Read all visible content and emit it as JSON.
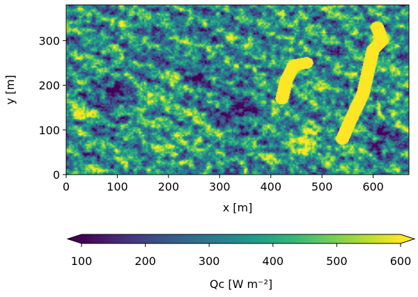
{
  "chart_data": {
    "type": "heatmap",
    "title": "",
    "xlabel": "x [m]",
    "ylabel": "y [m]",
    "xlim": [
      0,
      670
    ],
    "ylim": [
      0,
      380
    ],
    "xticks": [
      0,
      100,
      200,
      300,
      400,
      500,
      600
    ],
    "yticks": [
      0,
      100,
      200,
      300
    ],
    "xtick_labels": [
      "0",
      "100",
      "200",
      "300",
      "400",
      "500",
      "600"
    ],
    "ytick_labels": [
      "0",
      "100",
      "200",
      "300"
    ],
    "colormap": "viridis",
    "colorbar": {
      "label": "Qc [W m⁻²]",
      "range": [
        100,
        600
      ],
      "extend": "both",
      "ticks": [
        100,
        200,
        300,
        400,
        500,
        600
      ],
      "tick_labels": [
        "100",
        "200",
        "300",
        "400",
        "500",
        "600"
      ],
      "orientation": "horizontal",
      "placement": "bottom"
    },
    "features": [
      {
        "kind": "high-value streak",
        "points": [
          [
            540,
            80
          ],
          [
            555,
            120
          ],
          [
            580,
            180
          ],
          [
            592,
            240
          ],
          [
            600,
            280
          ],
          [
            618,
            300
          ],
          [
            608,
            330
          ]
        ]
      },
      {
        "kind": "high-value streak",
        "points": [
          [
            422,
            170
          ],
          [
            430,
            210
          ],
          [
            445,
            245
          ],
          [
            470,
            250
          ]
        ]
      },
      {
        "kind": "high-value patch",
        "center": [
          470,
          75
        ],
        "radius": 40
      },
      {
        "kind": "high-value patch",
        "center": [
          200,
          65
        ],
        "radius": 35
      },
      {
        "kind": "high-value patch",
        "center": [
          30,
          140
        ],
        "radius": 35
      },
      {
        "kind": "high-value patch",
        "center": [
          160,
          160
        ],
        "radius": 25
      },
      {
        "kind": "low-value patch",
        "center": [
          90,
          180
        ],
        "radius": 60
      },
      {
        "kind": "low-value patch",
        "center": [
          340,
          140
        ],
        "radius": 70
      },
      {
        "kind": "low-value patch",
        "center": [
          620,
          80
        ],
        "radius": 50
      },
      {
        "kind": "low-value patch",
        "center": [
          260,
          230
        ],
        "radius": 45
      }
    ]
  }
}
